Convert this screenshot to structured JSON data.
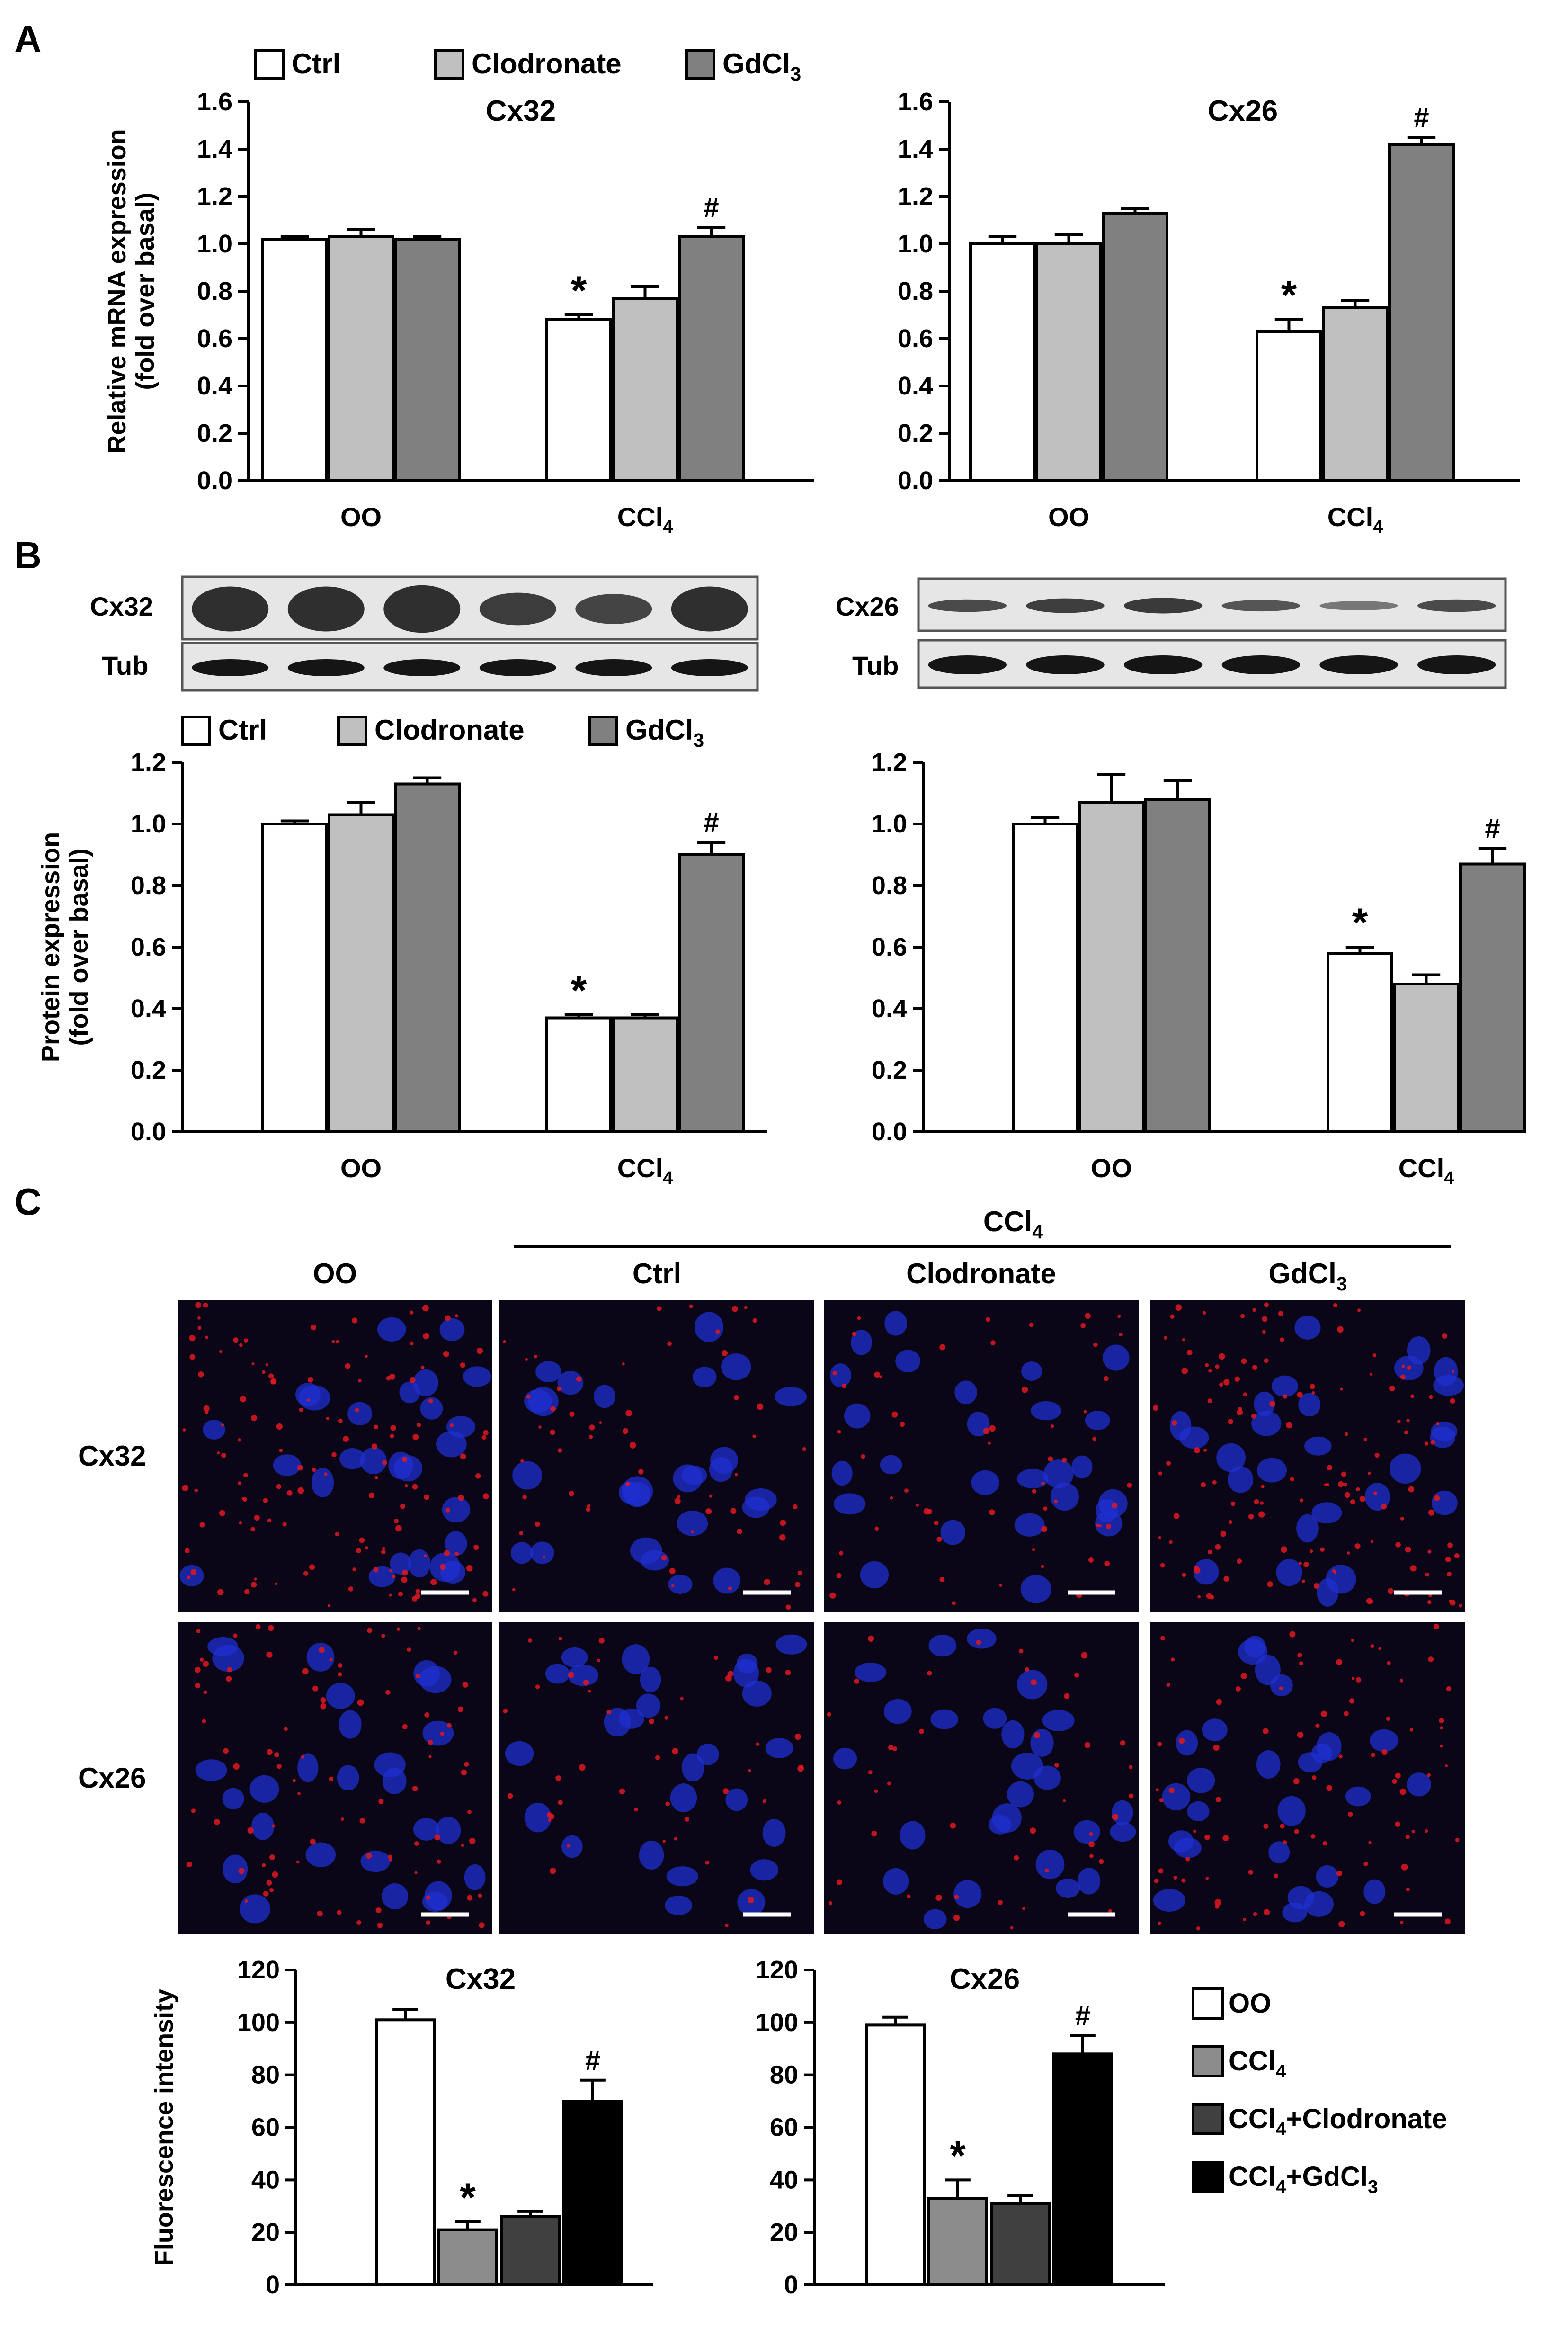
{
  "panel_labels": [
    "A",
    "B",
    "C"
  ],
  "colors": {
    "ctrl": "#ffffff",
    "clodronate": "#c0c0c0",
    "gdcl3": "#808080",
    "oo": "#ffffff",
    "ccl4": "#8c8c8c",
    "ccl4_clodronate": "#404040",
    "ccl4_gdcl3": "#000000",
    "micro_bg": "#0a0618",
    "nucleus": "#1f2fd0",
    "junction": "#e01820"
  },
  "legend_ab": [
    "Ctrl",
    "Clodronate",
    "GdCl3"
  ],
  "legend_c": [
    "OO",
    "CCl4",
    "CCl4+Clodronate",
    "CCl4+GdCl3"
  ],
  "blots": {
    "left": {
      "top": "Cx32",
      "bottom": "Tub"
    },
    "right": {
      "top": "Cx26",
      "bottom": "Tub"
    }
  },
  "micrographs": {
    "group_header": "CCl4",
    "columns": [
      "OO",
      "Ctrl",
      "Clodronate",
      "GdCl3"
    ],
    "rows": [
      "Cx32",
      "Cx26"
    ]
  },
  "chart_data": [
    {
      "id": "A-left",
      "type": "bar",
      "title": "Cx32",
      "ylabel": "Relative mRNA expression (fold over basal)",
      "ylim": [
        0,
        1.6
      ],
      "yticks": [
        0.0,
        0.2,
        0.4,
        0.6,
        0.8,
        1.0,
        1.2,
        1.4,
        1.6
      ],
      "categories": [
        "OO",
        "CCl4"
      ],
      "series": [
        {
          "name": "Ctrl",
          "values": [
            1.02,
            0.68
          ],
          "errors": [
            0.01,
            0.02
          ]
        },
        {
          "name": "Clodronate",
          "values": [
            1.03,
            0.77
          ],
          "errors": [
            0.03,
            0.05
          ]
        },
        {
          "name": "GdCl3",
          "values": [
            1.02,
            1.03
          ],
          "errors": [
            0.01,
            0.04
          ]
        }
      ],
      "annotations": [
        {
          "category": "CCl4",
          "series": "Ctrl",
          "text": "*"
        },
        {
          "category": "CCl4",
          "series": "GdCl3",
          "text": "#"
        }
      ]
    },
    {
      "id": "A-right",
      "type": "bar",
      "title": "Cx26",
      "ylabel": "",
      "ylim": [
        0,
        1.6
      ],
      "yticks": [
        0.0,
        0.2,
        0.4,
        0.6,
        0.8,
        1.0,
        1.2,
        1.4,
        1.6
      ],
      "categories": [
        "OO",
        "CCl4"
      ],
      "series": [
        {
          "name": "Ctrl",
          "values": [
            1.0,
            0.63
          ],
          "errors": [
            0.03,
            0.05
          ]
        },
        {
          "name": "Clodronate",
          "values": [
            1.0,
            0.73
          ],
          "errors": [
            0.04,
            0.03
          ]
        },
        {
          "name": "GdCl3",
          "values": [
            1.13,
            1.42
          ],
          "errors": [
            0.02,
            0.03
          ]
        }
      ],
      "annotations": [
        {
          "category": "CCl4",
          "series": "Ctrl",
          "text": "*"
        },
        {
          "category": "CCl4",
          "series": "GdCl3",
          "text": "#"
        }
      ]
    },
    {
      "id": "B-left",
      "type": "bar",
      "title": "",
      "ylabel": "Protein expression (fold over basal)",
      "ylim": [
        0,
        1.2
      ],
      "yticks": [
        0.0,
        0.2,
        0.4,
        0.6,
        0.8,
        1.0,
        1.2
      ],
      "categories": [
        "OO",
        "CCl4"
      ],
      "series": [
        {
          "name": "Ctrl",
          "values": [
            1.0,
            0.37
          ],
          "errors": [
            0.01,
            0.01
          ]
        },
        {
          "name": "Clodronate",
          "values": [
            1.03,
            0.37
          ],
          "errors": [
            0.04,
            0.01
          ]
        },
        {
          "name": "GdCl3",
          "values": [
            1.13,
            0.9
          ],
          "errors": [
            0.02,
            0.04
          ]
        }
      ],
      "annotations": [
        {
          "category": "CCl4",
          "series": "Ctrl",
          "text": "*"
        },
        {
          "category": "CCl4",
          "series": "GdCl3",
          "text": "#"
        }
      ]
    },
    {
      "id": "B-right",
      "type": "bar",
      "title": "",
      "ylabel": "",
      "ylim": [
        0,
        1.2
      ],
      "yticks": [
        0.0,
        0.2,
        0.4,
        0.6,
        0.8,
        1.0,
        1.2
      ],
      "categories": [
        "OO",
        "CCl4"
      ],
      "series": [
        {
          "name": "Ctrl",
          "values": [
            1.0,
            0.58
          ],
          "errors": [
            0.02,
            0.02
          ]
        },
        {
          "name": "Clodronate",
          "values": [
            1.07,
            0.48
          ],
          "errors": [
            0.09,
            0.03
          ]
        },
        {
          "name": "GdCl3",
          "values": [
            1.08,
            0.87
          ],
          "errors": [
            0.06,
            0.05
          ]
        }
      ],
      "annotations": [
        {
          "category": "CCl4",
          "series": "Ctrl",
          "text": "*"
        },
        {
          "category": "CCl4",
          "series": "GdCl3",
          "text": "#"
        }
      ]
    },
    {
      "id": "C-left",
      "type": "bar",
      "title": "Cx32",
      "ylabel": "Fluorescence intensity",
      "ylim": [
        0,
        120
      ],
      "yticks": [
        0,
        20,
        40,
        60,
        80,
        100,
        120
      ],
      "categories": [
        "OO",
        "CCl4",
        "CCl4+Clodronate",
        "CCl4+GdCl3"
      ],
      "values": [
        101,
        21,
        26,
        70
      ],
      "errors": [
        4,
        3,
        2,
        8
      ],
      "annotations": [
        {
          "index": 1,
          "text": "*"
        },
        {
          "index": 3,
          "text": "#"
        }
      ]
    },
    {
      "id": "C-right",
      "type": "bar",
      "title": "Cx26",
      "ylabel": "",
      "ylim": [
        0,
        120
      ],
      "yticks": [
        0,
        20,
        40,
        60,
        80,
        100,
        120
      ],
      "categories": [
        "OO",
        "CCl4",
        "CCl4+Clodronate",
        "CCl4+GdCl3"
      ],
      "values": [
        99,
        33,
        31,
        88
      ],
      "errors": [
        3,
        7,
        3,
        7
      ],
      "annotations": [
        {
          "index": 1,
          "text": "*"
        },
        {
          "index": 3,
          "text": "#"
        }
      ]
    }
  ]
}
